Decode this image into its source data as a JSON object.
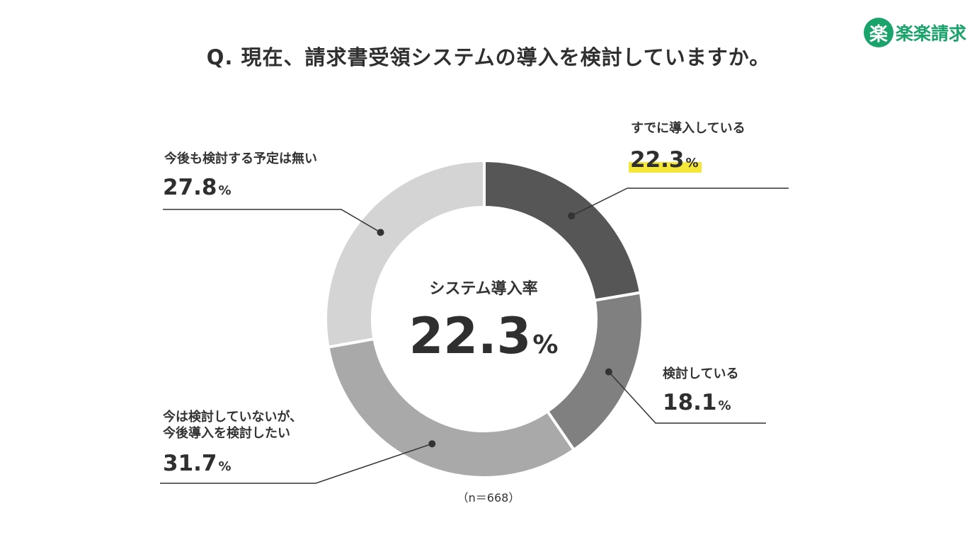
{
  "title": "Q. 現在、請求書受領システムの導入を検討していますか。",
  "logo": {
    "mark": "楽",
    "text": "楽楽請求",
    "color": "#1aa36b"
  },
  "center": {
    "label": "システム導入率",
    "value": "22.3",
    "unit": "%"
  },
  "note": "（n＝668）",
  "labels": {
    "s1": {
      "line1": "すでに導入している",
      "value": "22.3",
      "unit": "%"
    },
    "s2": {
      "line1": "検討している",
      "value": "18.1",
      "unit": "%"
    },
    "s3": {
      "line1": "今は検討していないが、",
      "line2": "今後導入を検討したい",
      "value": "31.7",
      "unit": "%"
    },
    "s4": {
      "line1": "今後も検討する予定は無い",
      "value": "27.8",
      "unit": "%"
    }
  },
  "chart_data": {
    "type": "pie",
    "variant": "donut",
    "title": "Q. 現在、請求書受領システムの導入を検討していますか。",
    "unit": "%",
    "categories": [
      "すでに導入している",
      "検討している",
      "今は検討していないが、今後導入を検討したい",
      "今後も検討する予定は無い"
    ],
    "values": [
      22.3,
      18.1,
      31.7,
      27.8
    ],
    "colors": [
      "#565656",
      "#808080",
      "#a9a9a9",
      "#d4d4d4"
    ],
    "highlight_color": "#f5e63a"
  }
}
